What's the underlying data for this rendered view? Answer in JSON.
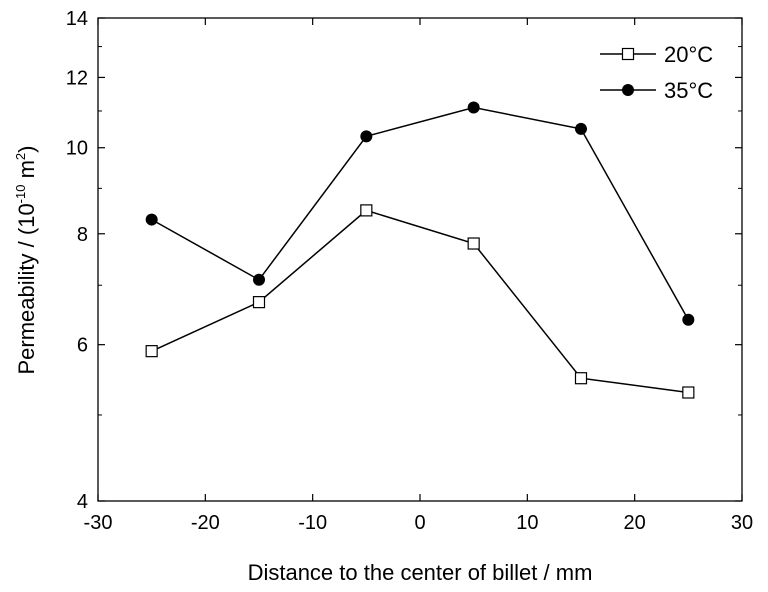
{
  "chart_data": {
    "type": "line",
    "xlabel": "Distance to the center of billet / mm",
    "ylabel_main": "Permeability / (10",
    "ylabel_exp": "-10",
    "ylabel_unit": " m",
    "ylabel_unit_exp": "2",
    "ylabel_close": ")",
    "xlim": [
      -30,
      30
    ],
    "ylim": [
      4,
      14
    ],
    "yscale": "log",
    "x_ticks": [
      -30,
      -20,
      -10,
      0,
      10,
      20,
      30
    ],
    "y_ticks": [
      4,
      6,
      8,
      10,
      12,
      14
    ],
    "legend_position": "top-right",
    "series": [
      {
        "name": "20°C",
        "marker": "open-square",
        "color": "#000000",
        "x": [
          -25,
          -15,
          -5,
          5,
          15,
          25
        ],
        "y": [
          5.9,
          6.7,
          8.5,
          7.8,
          5.5,
          5.3
        ]
      },
      {
        "name": "35°C",
        "marker": "filled-circle",
        "color": "#000000",
        "x": [
          -25,
          -15,
          -5,
          5,
          15,
          25
        ],
        "y": [
          8.3,
          7.1,
          10.3,
          11.1,
          10.5,
          6.4
        ]
      }
    ]
  }
}
